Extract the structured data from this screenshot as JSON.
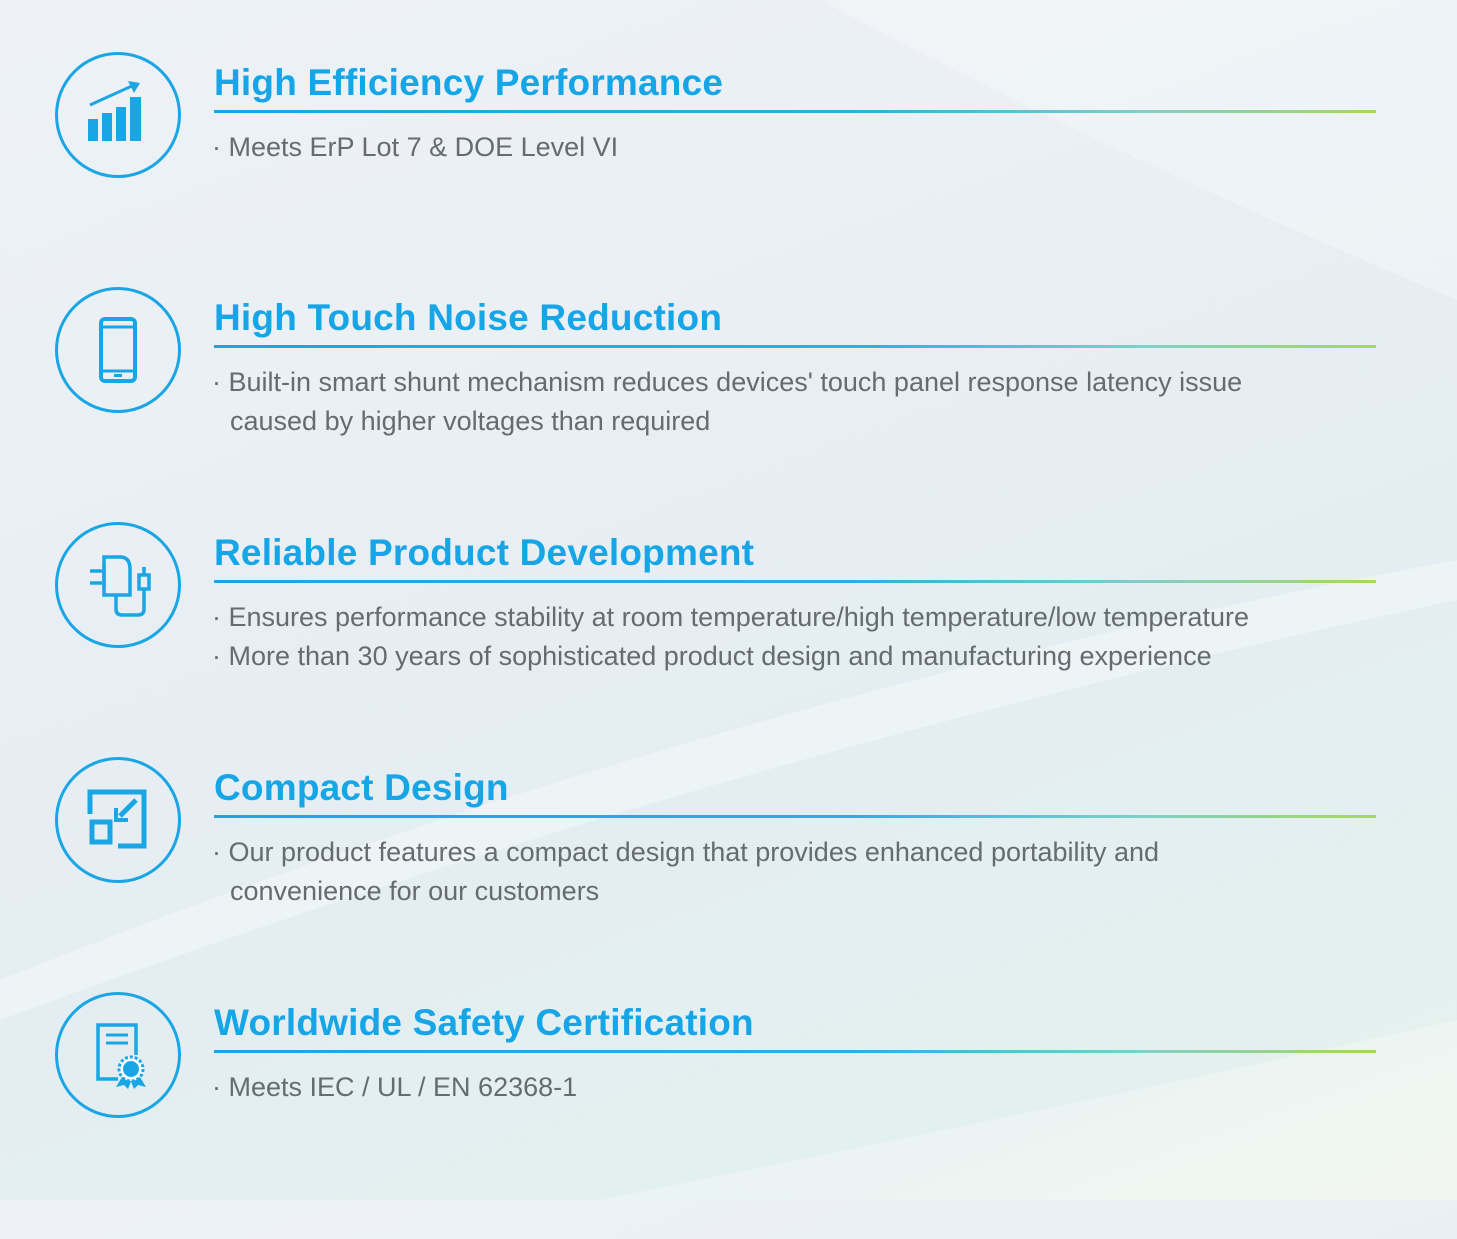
{
  "colors": {
    "accent": "#16a5e6",
    "text": "#666b70",
    "rule_end": "#a8d85a"
  },
  "features": [
    {
      "icon": "bar-chart-growth-icon",
      "title": "High Efficiency Performance",
      "lines": [
        "· Meets ErP Lot 7 & DOE Level VI"
      ]
    },
    {
      "icon": "smartphone-icon",
      "title": "High Touch Noise Reduction",
      "lines": [
        "· Built-in smart shunt mechanism reduces devices' touch panel response latency issue",
        "caused by higher voltages than required"
      ]
    },
    {
      "icon": "charger-adapter-icon",
      "title": "Reliable Product Development",
      "lines": [
        "· Ensures performance stability at room temperature/high temperature/low temperature",
        "· More than 30 years of sophisticated product  design and manufacturing experience"
      ]
    },
    {
      "icon": "compact-resize-icon",
      "title": "Compact Design",
      "lines": [
        "· Our product features a compact design that provides enhanced portability and",
        "convenience for our customers"
      ]
    },
    {
      "icon": "certificate-icon",
      "title": "Worldwide Safety Certification",
      "lines": [
        "· Meets IEC / UL / EN 62368-1"
      ]
    }
  ]
}
